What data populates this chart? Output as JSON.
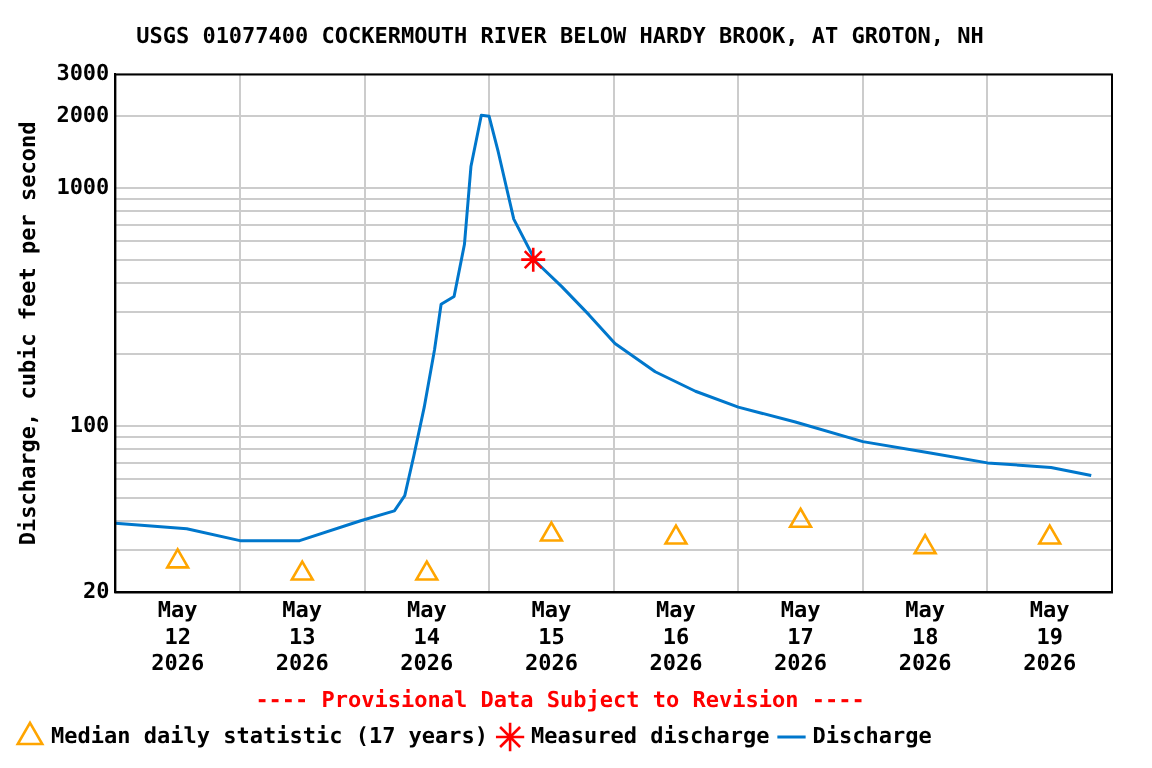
{
  "chart_data": {
    "type": "line",
    "title": "USGS 01077400 COCKERMOUTH RIVER BELOW HARDY BROOK, AT GROTON, NH",
    "ylabel": "Discharge, cubic feet per second",
    "annotations": [
      "---- Provisional Data Subject to Revision ----"
    ],
    "log": "y",
    "grid": true,
    "legend": "bottom",
    "xlim": [
      "2026-05-12T00:00",
      "2026-05-20T00:00"
    ],
    "xticks": [
      {
        "value": "2026-05-12T12:00",
        "label": "May 12 2026"
      },
      {
        "value": "2026-05-13T00:00",
        "label": null
      },
      {
        "value": "2026-05-13T12:00",
        "label": "May 13 2026"
      },
      {
        "value": "2026-05-14T00:00",
        "label": null
      },
      {
        "value": "2026-05-14T12:00",
        "label": "May 14 2026"
      },
      {
        "value": "2026-05-15T00:00",
        "label": null
      },
      {
        "value": "2026-05-15T12:00",
        "label": "May 15 2026"
      },
      {
        "value": "2026-05-16T00:00",
        "label": null
      },
      {
        "value": "2026-05-16T12:00",
        "label": "May 16 2026"
      },
      {
        "value": "2026-05-17T00:00",
        "label": null
      },
      {
        "value": "2026-05-17T12:00",
        "label": "May 17 2026"
      },
      {
        "value": "2026-05-18T00:00",
        "label": null
      },
      {
        "value": "2026-05-18T12:00",
        "label": "May 18 2026"
      },
      {
        "value": "2026-05-19T00:00",
        "label": null
      },
      {
        "value": "2026-05-19T12:00",
        "label": "May 19 2026"
      }
    ],
    "ylim": [
      20,
      3000
    ],
    "yticks": [
      20,
      {
        "value": 30,
        "label": null
      },
      {
        "value": 40,
        "label": null
      },
      {
        "value": 50,
        "label": null
      },
      {
        "value": 60,
        "label": null
      },
      {
        "value": 70,
        "label": null
      },
      {
        "value": 80,
        "label": null
      },
      {
        "value": 90,
        "label": null
      },
      100,
      {
        "value": 200,
        "label": null
      },
      {
        "value": 300,
        "label": null
      },
      {
        "value": 400,
        "label": null
      },
      {
        "value": 500,
        "label": null
      },
      {
        "value": 600,
        "label": null
      },
      {
        "value": 700,
        "label": null
      },
      {
        "value": 800,
        "label": null
      },
      {
        "value": 900,
        "label": null
      },
      1000,
      2000,
      3000
    ],
    "series": [
      {
        "name": "Median daily statistic (17 years)",
        "type": "scatter",
        "marker": "triangle",
        "color": "#ffa500",
        "x": [
          "2026-05-12T12:00",
          "2026-05-13T12:00",
          "2026-05-14T12:00",
          "2026-05-15T12:00",
          "2026-05-16T12:00",
          "2026-05-17T12:00",
          "2026-05-18T12:00",
          "2026-05-19T12:00"
        ],
        "values": [
          27,
          24,
          24,
          35,
          34,
          40,
          31,
          34
        ]
      },
      {
        "name": "Measured discharge",
        "type": "scatter",
        "marker": "cross",
        "color": "#ff0000",
        "x": [
          "2026-05-15T08:30"
        ],
        "values": [
          500
        ]
      },
      {
        "name": "Discharge",
        "type": "line",
        "marker": "none",
        "line_style": "solid",
        "color": "#0077cc",
        "x": [
          "2026-05-12T00:00",
          "2026-05-12T13:45",
          "2026-05-13T00:00",
          "2026-05-13T11:30",
          "2026-05-13T23:15",
          "2026-05-14T05:45",
          "2026-05-14T07:45",
          "2026-05-14T09:30",
          "2026-05-14T11:30",
          "2026-05-14T13:30",
          "2026-05-14T14:45",
          "2026-05-14T17:15",
          "2026-05-14T19:15",
          "2026-05-14T20:30",
          "2026-05-14T22:30",
          "2026-05-15T00:00",
          "2026-05-15T01:45",
          "2026-05-15T04:45",
          "2026-05-15T09:00",
          "2026-05-15T14:00",
          "2026-05-15T19:15",
          "2026-05-16T00:15",
          "2026-05-16T08:00",
          "2026-05-16T15:45",
          "2026-05-17T00:00",
          "2026-05-17T11:00",
          "2026-05-18T00:00",
          "2026-05-18T13:00",
          "2026-05-19T00:00",
          "2026-05-19T12:15",
          "2026-05-19T20:00"
        ],
        "values": [
          39,
          37,
          33,
          33,
          40,
          44,
          51,
          75,
          120,
          210,
          325,
          350,
          580,
          1230,
          2020,
          2000,
          1420,
          740,
          490,
          385,
          293,
          222,
          169,
          140,
          120,
          104,
          86,
          77,
          70,
          67,
          62
        ]
      }
    ]
  }
}
